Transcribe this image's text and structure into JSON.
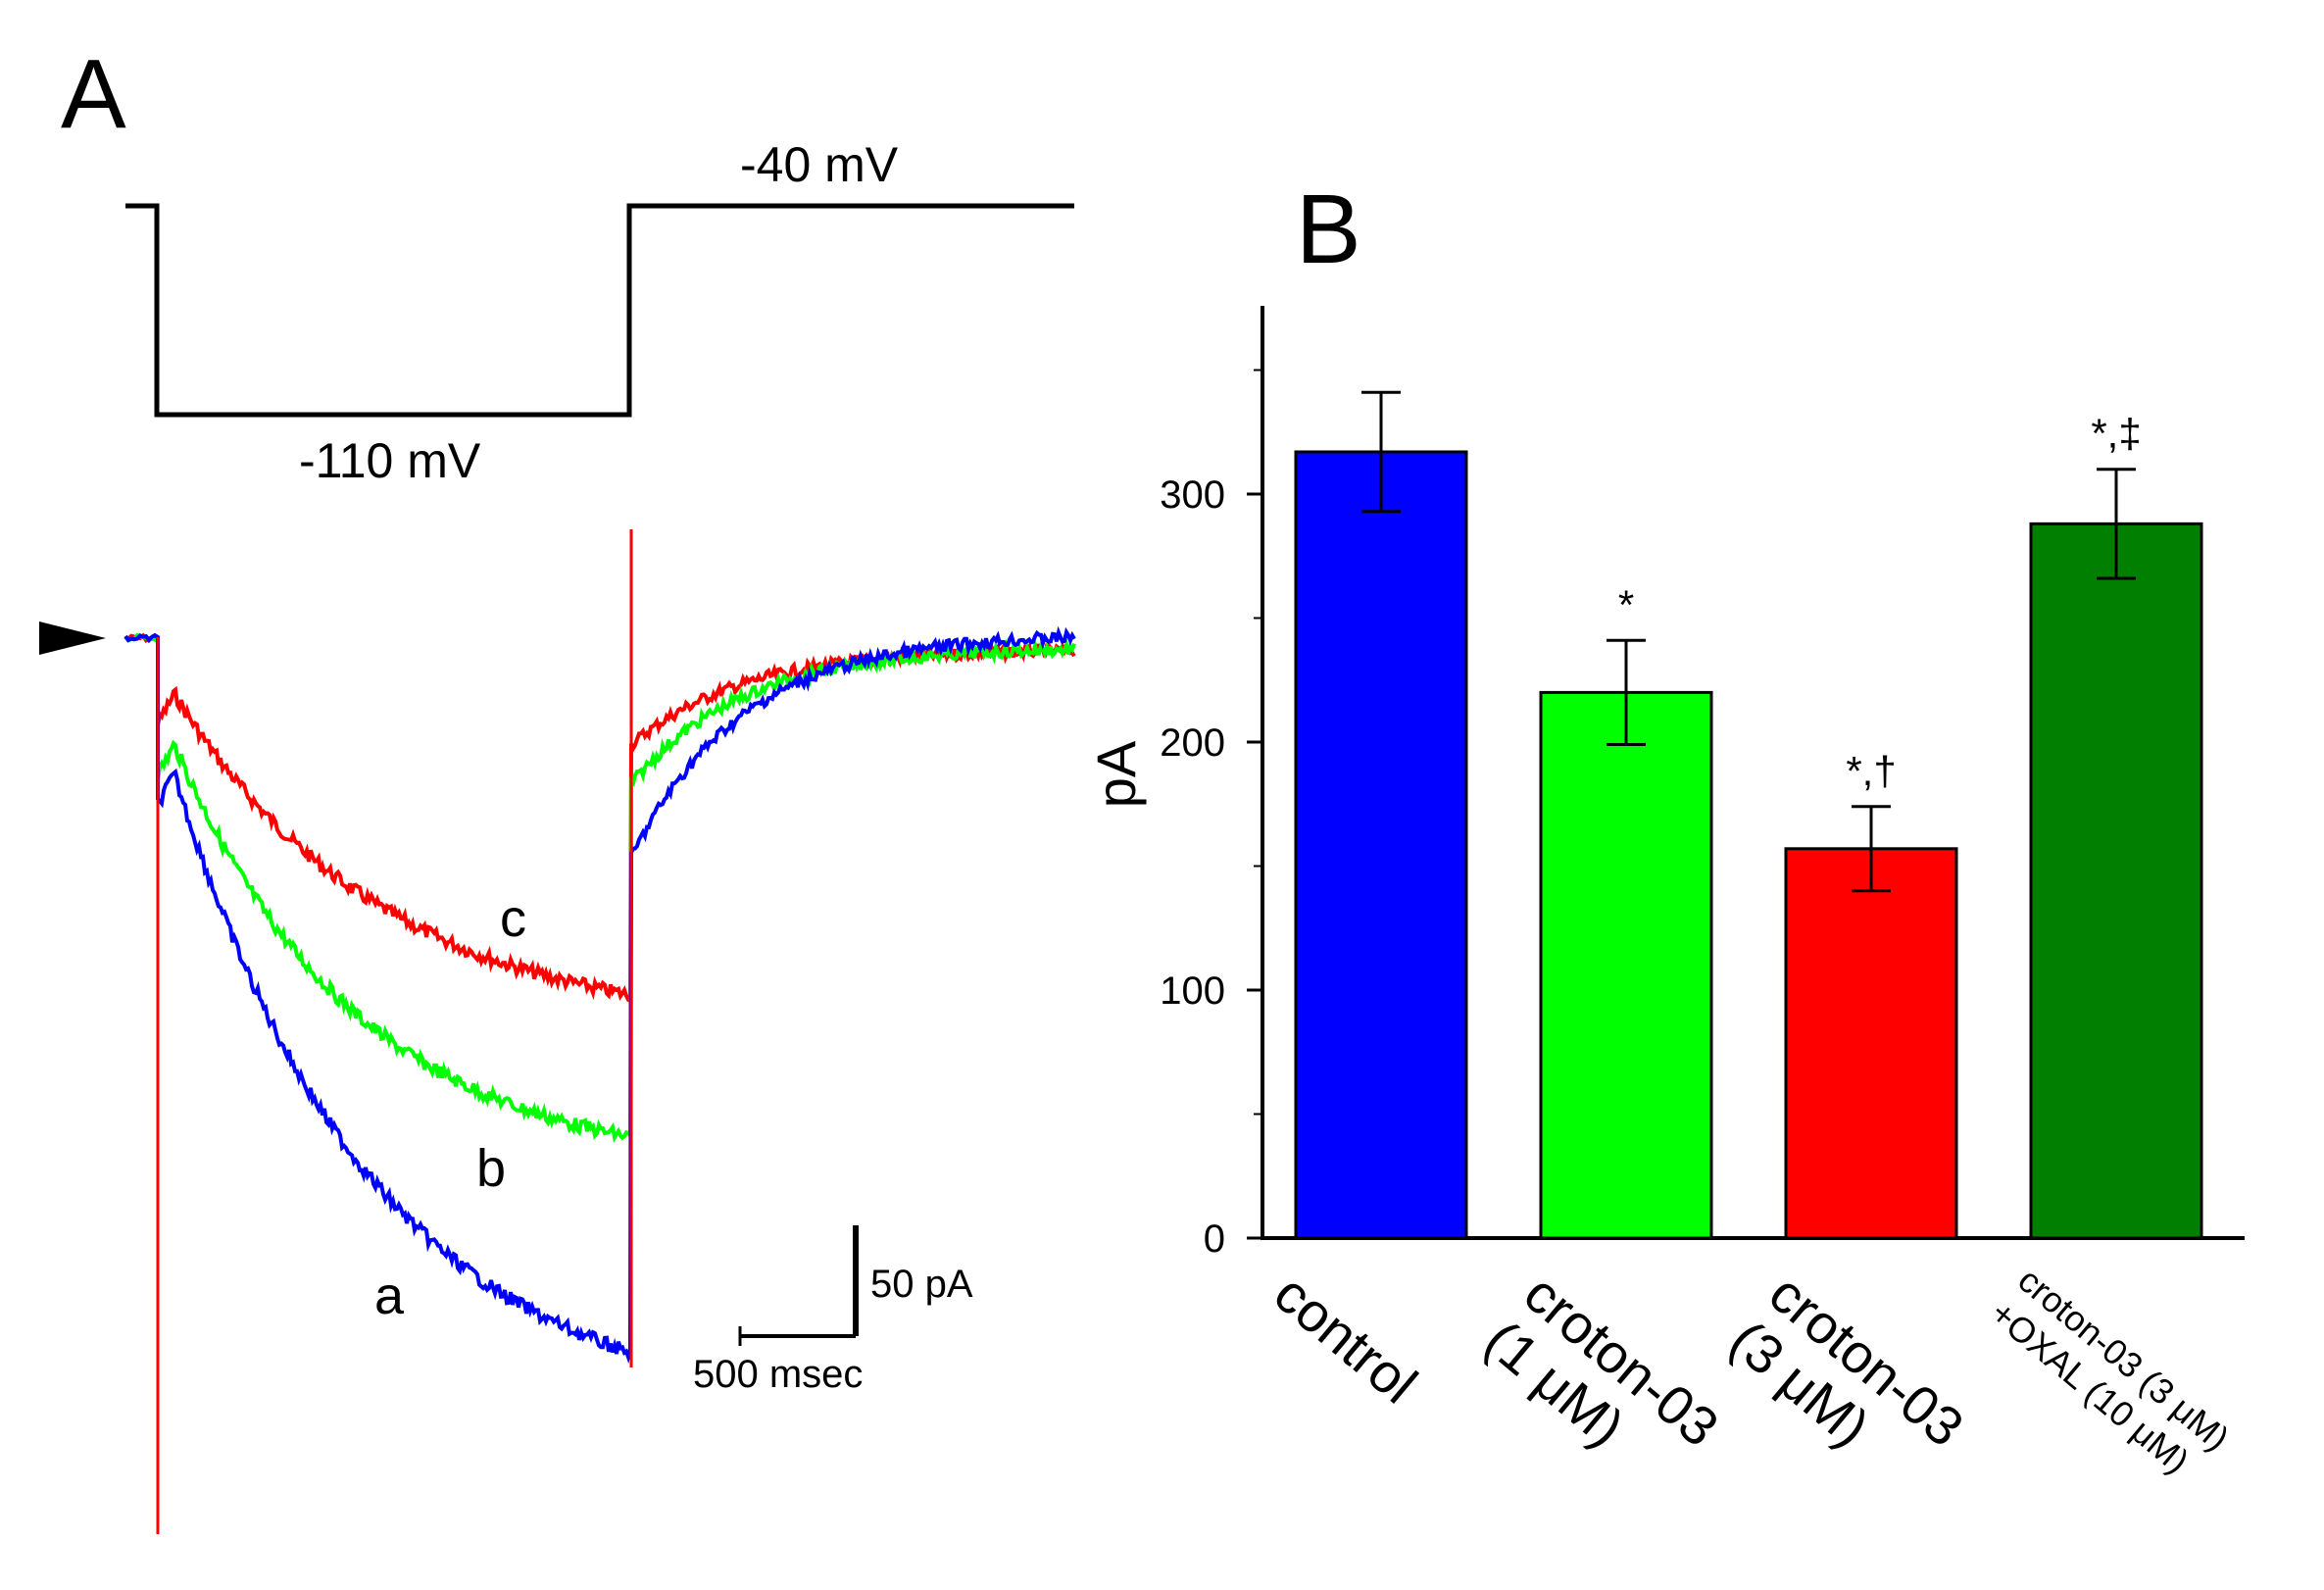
{
  "panel_a": {
    "label": "A",
    "protocol": {
      "hold_label": "-40 mV",
      "step_label": "-110 mV"
    },
    "traces": [
      {
        "id": "a",
        "label": "a",
        "color": "#0000ff"
      },
      {
        "id": "b",
        "label": "b",
        "color": "#00ff00"
      },
      {
        "id": "c",
        "label": "c",
        "color": "#ff0000"
      }
    ],
    "scale_bar": {
      "current_label": "50 pA",
      "time_label": "500 msec"
    }
  },
  "panel_b": {
    "label": "B"
  },
  "chart_data": {
    "type": "bar",
    "title": "",
    "xlabel": "",
    "ylabel": "pA",
    "ylim": [
      0,
      375
    ],
    "yticks": [
      0,
      100,
      200,
      300
    ],
    "ytick_labels": [
      "0",
      "100",
      "200",
      "300"
    ],
    "categories": [
      [
        "control"
      ],
      [
        "croton-03",
        "(1 μM)"
      ],
      [
        "croton-03",
        "(3 μM)"
      ],
      [
        "croton-03 (3 μM)",
        "+OXAL (10 μM)"
      ]
    ],
    "values": [
      317,
      220,
      157,
      288
    ],
    "errors": [
      24,
      21,
      17,
      22
    ],
    "colors": [
      "#0000ff",
      "#00ff00",
      "#ff0000",
      "#007f00"
    ],
    "significance": [
      "",
      "*",
      "*,†",
      "*,‡"
    ],
    "grid": false,
    "legend": "none"
  }
}
